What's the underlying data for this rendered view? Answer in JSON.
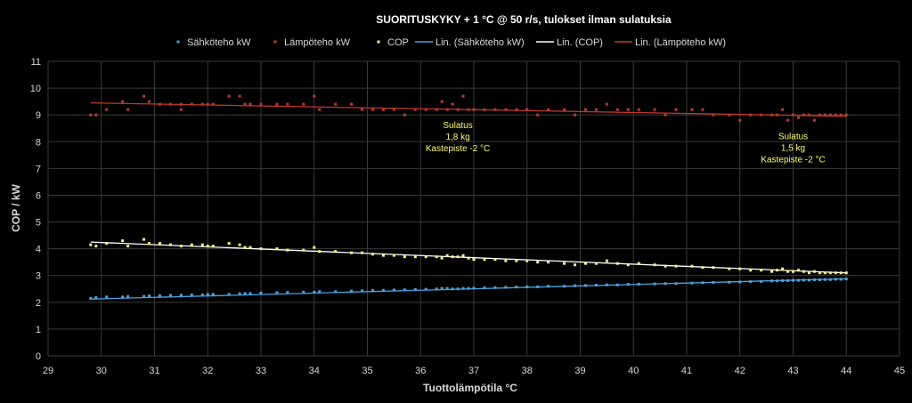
{
  "chart_data": {
    "type": "scatter",
    "title": "SUORITUSKYKY + 1 °C @ 50 r/s, tulokset ilman sulatuksia",
    "xlabel": "Tuottolämpötila °C",
    "ylabel": "COP  /  kW",
    "xlim": [
      29,
      45
    ],
    "ylim": [
      0,
      11
    ],
    "xticks": [
      29,
      30,
      31,
      32,
      33,
      34,
      35,
      36,
      37,
      38,
      39,
      40,
      41,
      42,
      43,
      44,
      45
    ],
    "yticks": [
      0,
      1,
      2,
      3,
      4,
      5,
      6,
      7,
      8,
      9,
      10,
      11
    ],
    "grid": "both",
    "legend_position": "top",
    "legend": [
      {
        "label": "Sähköteho kW",
        "kind": "marker",
        "color": "#4aa3df"
      },
      {
        "label": "Lämpöteho kW",
        "kind": "marker",
        "color": "#c0392b"
      },
      {
        "label": "COP",
        "kind": "marker",
        "color": "#f4f48c"
      },
      {
        "label": "Lin. (Sähköteho kW)",
        "kind": "line",
        "color": "#4aa3df"
      },
      {
        "label": "Lin. (COP)",
        "kind": "line",
        "color": "#ffffff"
      },
      {
        "label": "Lin. (Lämpöteho kW)",
        "kind": "line",
        "color": "#c0392b"
      }
    ],
    "series": [
      {
        "name": "Lämpöteho kW",
        "color": "#c0392b",
        "x": [
          29.8,
          29.9,
          30.1,
          30.4,
          30.5,
          30.8,
          30.9,
          31.1,
          31.3,
          31.5,
          31.5,
          31.7,
          31.9,
          32.0,
          32.1,
          32.4,
          32.6,
          32.7,
          32.8,
          33.0,
          33.3,
          33.5,
          33.8,
          34.0,
          34.1,
          34.4,
          34.7,
          34.9,
          35.1,
          35.3,
          35.5,
          35.7,
          35.9,
          36.1,
          36.3,
          36.4,
          36.5,
          36.6,
          36.7,
          36.8,
          36.9,
          37.0,
          37.2,
          37.4,
          37.6,
          37.8,
          38.0,
          38.2,
          38.4,
          38.7,
          38.9,
          39.1,
          39.3,
          39.5,
          39.7,
          39.9,
          40.1,
          40.4,
          40.6,
          40.8,
          41.1,
          41.3,
          41.5,
          41.8,
          42.0,
          42.2,
          42.4,
          42.6,
          42.7,
          42.8,
          42.9,
          43.0,
          43.1,
          43.2,
          43.3,
          43.4,
          43.5,
          43.6,
          43.7,
          43.8,
          43.9,
          44.0
        ],
        "values": [
          9.0,
          9.0,
          9.2,
          9.5,
          9.2,
          9.7,
          9.5,
          9.4,
          9.4,
          9.2,
          9.4,
          9.4,
          9.4,
          9.4,
          9.4,
          9.7,
          9.7,
          9.4,
          9.4,
          9.4,
          9.4,
          9.4,
          9.4,
          9.7,
          9.2,
          9.4,
          9.4,
          9.2,
          9.2,
          9.2,
          9.2,
          9.0,
          9.2,
          9.2,
          9.2,
          9.5,
          9.2,
          9.4,
          9.2,
          9.7,
          9.2,
          9.2,
          9.2,
          9.2,
          9.2,
          9.2,
          9.2,
          9.0,
          9.2,
          9.2,
          9.0,
          9.2,
          9.2,
          9.4,
          9.2,
          9.2,
          9.2,
          9.2,
          9.0,
          9.2,
          9.2,
          9.2,
          9.0,
          9.0,
          8.8,
          9.0,
          9.0,
          9.0,
          9.0,
          9.2,
          8.8,
          9.0,
          8.9,
          9.0,
          9.0,
          8.8,
          9.0,
          9.0,
          9.0,
          9.0,
          9.0,
          9.0
        ]
      },
      {
        "name": "COP",
        "color": "#f4f48c",
        "x": [
          29.8,
          29.9,
          30.1,
          30.4,
          30.5,
          30.8,
          30.9,
          31.1,
          31.3,
          31.5,
          31.7,
          31.9,
          32.0,
          32.1,
          32.4,
          32.6,
          32.7,
          32.8,
          33.0,
          33.3,
          33.5,
          33.8,
          34.0,
          34.1,
          34.4,
          34.7,
          34.9,
          35.1,
          35.3,
          35.5,
          35.7,
          35.9,
          36.1,
          36.3,
          36.4,
          36.5,
          36.6,
          36.7,
          36.8,
          36.9,
          37.0,
          37.2,
          37.4,
          37.6,
          37.8,
          38.0,
          38.2,
          38.4,
          38.7,
          38.9,
          39.1,
          39.3,
          39.5,
          39.7,
          39.9,
          40.1,
          40.4,
          40.6,
          40.8,
          41.1,
          41.3,
          41.5,
          41.8,
          42.0,
          42.2,
          42.4,
          42.6,
          42.7,
          42.8,
          42.9,
          43.0,
          43.1,
          43.2,
          43.3,
          43.4,
          43.5,
          43.6,
          43.7,
          43.8,
          43.9,
          44.0
        ],
        "values": [
          4.15,
          4.1,
          4.2,
          4.3,
          4.1,
          4.35,
          4.2,
          4.2,
          4.15,
          4.1,
          4.15,
          4.15,
          4.1,
          4.1,
          4.2,
          4.15,
          4.05,
          4.05,
          4.0,
          4.0,
          3.95,
          3.95,
          4.05,
          3.9,
          3.9,
          3.85,
          3.85,
          3.8,
          3.75,
          3.75,
          3.7,
          3.7,
          3.7,
          3.7,
          3.65,
          3.75,
          3.7,
          3.7,
          3.75,
          3.65,
          3.6,
          3.6,
          3.6,
          3.55,
          3.55,
          3.55,
          3.5,
          3.5,
          3.45,
          3.4,
          3.45,
          3.45,
          3.55,
          3.45,
          3.4,
          3.45,
          3.4,
          3.35,
          3.35,
          3.35,
          3.3,
          3.3,
          3.25,
          3.25,
          3.2,
          3.2,
          3.15,
          3.2,
          3.25,
          3.15,
          3.15,
          3.2,
          3.15,
          3.1,
          3.15,
          3.1,
          3.1,
          3.1,
          3.1,
          3.1,
          3.1
        ]
      },
      {
        "name": "Sähköteho kW",
        "color": "#4aa3df",
        "x": [
          29.8,
          29.9,
          30.1,
          30.4,
          30.5,
          30.8,
          30.9,
          31.1,
          31.3,
          31.5,
          31.7,
          31.9,
          32.0,
          32.1,
          32.4,
          32.6,
          32.7,
          32.8,
          33.0,
          33.3,
          33.5,
          33.8,
          34.0,
          34.1,
          34.4,
          34.7,
          34.9,
          35.1,
          35.3,
          35.5,
          35.7,
          35.9,
          36.1,
          36.3,
          36.4,
          36.5,
          36.6,
          36.7,
          36.8,
          36.9,
          37.0,
          37.2,
          37.4,
          37.6,
          37.8,
          38.0,
          38.2,
          38.4,
          38.7,
          38.9,
          39.1,
          39.3,
          39.5,
          39.7,
          39.9,
          40.1,
          40.4,
          40.6,
          40.8,
          41.1,
          41.3,
          41.5,
          41.8,
          42.0,
          42.2,
          42.4,
          42.6,
          42.7,
          42.8,
          42.9,
          43.0,
          43.1,
          43.2,
          43.3,
          43.4,
          43.5,
          43.6,
          43.7,
          43.8,
          43.9,
          44.0
        ],
        "values": [
          2.15,
          2.18,
          2.2,
          2.2,
          2.22,
          2.22,
          2.24,
          2.25,
          2.26,
          2.27,
          2.28,
          2.28,
          2.3,
          2.3,
          2.3,
          2.32,
          2.33,
          2.33,
          2.35,
          2.36,
          2.37,
          2.38,
          2.38,
          2.4,
          2.4,
          2.42,
          2.43,
          2.44,
          2.45,
          2.46,
          2.47,
          2.48,
          2.49,
          2.5,
          2.52,
          2.52,
          2.5,
          2.5,
          2.52,
          2.52,
          2.53,
          2.54,
          2.55,
          2.56,
          2.57,
          2.58,
          2.58,
          2.6,
          2.6,
          2.62,
          2.63,
          2.64,
          2.65,
          2.65,
          2.67,
          2.68,
          2.69,
          2.7,
          2.7,
          2.72,
          2.73,
          2.74,
          2.75,
          2.76,
          2.77,
          2.78,
          2.8,
          2.8,
          2.81,
          2.81,
          2.82,
          2.82,
          2.83,
          2.83,
          2.84,
          2.84,
          2.85,
          2.85,
          2.86,
          2.86,
          2.87
        ]
      }
    ],
    "trendlines": [
      {
        "name": "Lin. (Lämpöteho kW)",
        "color": "#c0392b",
        "x": [
          29.8,
          44.0
        ],
        "y": [
          9.45,
          8.95
        ]
      },
      {
        "name": "Lin. (COP)",
        "color": "#ffffff",
        "x": [
          29.8,
          44.0
        ],
        "y": [
          4.25,
          3.1
        ]
      },
      {
        "name": "Lin. (Sähköteho kW)",
        "color": "#4aa3df",
        "x": [
          29.8,
          44.0
        ],
        "y": [
          2.12,
          2.88
        ]
      }
    ],
    "annotations": [
      {
        "lines": [
          "Sulatus",
          "1,8 kg",
          "Kastepiste -2 °C"
        ],
        "x": 36.7,
        "y": 8.5
      },
      {
        "lines": [
          "Sulatus",
          "1,5 kg",
          "Kastepiste -2 °C"
        ],
        "x": 43.0,
        "y": 8.1
      }
    ]
  }
}
